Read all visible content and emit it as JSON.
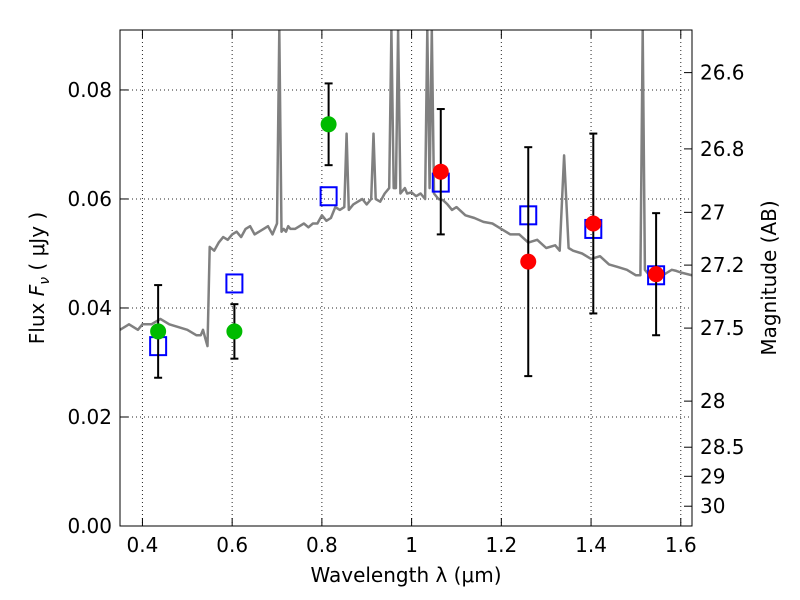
{
  "chart_data": {
    "type": "scatter",
    "xlabel": "Wavelength  λ (μm)",
    "ylabel_left": {
      "prefix": "Flux ",
      "symbol": "F",
      "subscript": "ν",
      "unit": "  ( μJy )"
    },
    "ylabel_right": "Magnitude (AB)",
    "xlim": [
      0.35,
      1.625
    ],
    "ylim": [
      0.0,
      0.091
    ],
    "grid": true,
    "x_ticks": [
      {
        "value": 0.4,
        "label": "0.4"
      },
      {
        "value": 0.6,
        "label": "0.6"
      },
      {
        "value": 0.8,
        "label": "0.8"
      },
      {
        "value": 1.0,
        "label": "1"
      },
      {
        "value": 1.2,
        "label": "1.2"
      },
      {
        "value": 1.4,
        "label": "1.4"
      },
      {
        "value": 1.6,
        "label": "1.6"
      }
    ],
    "y_ticks": [
      {
        "value": 0.0,
        "label": "0.00"
      },
      {
        "value": 0.02,
        "label": "0.02"
      },
      {
        "value": 0.04,
        "label": "0.04"
      },
      {
        "value": 0.06,
        "label": "0.06"
      },
      {
        "value": 0.08,
        "label": "0.08"
      }
    ],
    "magnitude_ticks": [
      {
        "mag": 26.6,
        "label": "26.6"
      },
      {
        "mag": 26.8,
        "label": "26.8"
      },
      {
        "mag": 27.0,
        "label": "27"
      },
      {
        "mag": 27.2,
        "label": "27.2"
      },
      {
        "mag": 27.5,
        "label": "27.5"
      },
      {
        "mag": 28.0,
        "label": "28"
      },
      {
        "mag": 28.5,
        "label": "28.5"
      },
      {
        "mag": 29.0,
        "label": "29"
      },
      {
        "mag": 30.0,
        "label": "30"
      }
    ],
    "series": [
      {
        "kind": "model_spectrum",
        "color": "#808080",
        "x": [
          0.35,
          0.37,
          0.39,
          0.4,
          0.42,
          0.44,
          0.46,
          0.48,
          0.5,
          0.52,
          0.53,
          0.535,
          0.54,
          0.545,
          0.55,
          0.56,
          0.57,
          0.58,
          0.59,
          0.6,
          0.61,
          0.62,
          0.63,
          0.64,
          0.65,
          0.66,
          0.67,
          0.68,
          0.69,
          0.7,
          0.705,
          0.71,
          0.715,
          0.72,
          0.725,
          0.73,
          0.74,
          0.75,
          0.76,
          0.77,
          0.78,
          0.79,
          0.8,
          0.81,
          0.82,
          0.83,
          0.84,
          0.85,
          0.855,
          0.86,
          0.87,
          0.88,
          0.89,
          0.9,
          0.91,
          0.915,
          0.92,
          0.93,
          0.94,
          0.95,
          0.955,
          0.96,
          0.965,
          0.97,
          0.975,
          0.98,
          0.985,
          0.99,
          1.0,
          1.01,
          1.02,
          1.03,
          1.035,
          1.04,
          1.045,
          1.05,
          1.06,
          1.07,
          1.08,
          1.09,
          1.1,
          1.12,
          1.14,
          1.16,
          1.18,
          1.2,
          1.22,
          1.24,
          1.26,
          1.28,
          1.3,
          1.32,
          1.33,
          1.34,
          1.35,
          1.36,
          1.38,
          1.4,
          1.42,
          1.44,
          1.46,
          1.48,
          1.5,
          1.51,
          1.515,
          1.52,
          1.525,
          1.53,
          1.54,
          1.55,
          1.56,
          1.57,
          1.58,
          1.59,
          1.6,
          1.625
        ],
        "y": [
          0.036,
          0.037,
          0.036,
          0.037,
          0.037,
          0.038,
          0.037,
          0.0365,
          0.036,
          0.035,
          0.035,
          0.036,
          0.0345,
          0.033,
          0.0512,
          0.0505,
          0.052,
          0.053,
          0.0525,
          0.0535,
          0.054,
          0.053,
          0.0545,
          0.055,
          0.0535,
          0.054,
          0.0545,
          0.055,
          0.0535,
          0.0555,
          0.091,
          0.054,
          0.0545,
          0.054,
          0.055,
          0.0545,
          0.0545,
          0.055,
          0.0555,
          0.0548,
          0.0555,
          0.0555,
          0.057,
          0.056,
          0.0565,
          0.0585,
          0.058,
          0.0585,
          0.072,
          0.058,
          0.059,
          0.0595,
          0.06,
          0.059,
          0.06,
          0.072,
          0.06,
          0.0595,
          0.061,
          0.062,
          0.091,
          0.062,
          0.062,
          0.091,
          0.061,
          0.0615,
          0.062,
          0.061,
          0.0612,
          0.0605,
          0.061,
          0.06,
          0.091,
          0.062,
          0.091,
          0.061,
          0.06,
          0.0598,
          0.059,
          0.058,
          0.0585,
          0.057,
          0.0565,
          0.0558,
          0.0555,
          0.0545,
          0.0535,
          0.0535,
          0.052,
          0.0525,
          0.051,
          0.0515,
          0.0505,
          0.068,
          0.051,
          0.0505,
          0.05,
          0.049,
          0.0495,
          0.048,
          0.0475,
          0.047,
          0.046,
          0.046,
          0.091,
          0.047,
          0.0465,
          0.046,
          0.0465,
          0.0458,
          0.046,
          0.0465,
          0.047,
          0.0468,
          0.0465,
          0.046
        ]
      },
      {
        "kind": "model_photometry",
        "marker": "open-square",
        "color": "#0000ff",
        "x": [
          0.435,
          0.605,
          0.815,
          1.065,
          1.26,
          1.405,
          1.545
        ],
        "y": [
          0.033,
          0.0445,
          0.0605,
          0.063,
          0.057,
          0.0545,
          0.046
        ]
      },
      {
        "kind": "observed_optical",
        "marker": "filled-circle",
        "color": "#00bb00",
        "x": [
          0.435,
          0.605,
          0.815
        ],
        "y": [
          0.0357,
          0.0357,
          0.0737
        ],
        "yerr": [
          0.0085,
          0.005,
          0.0075
        ]
      },
      {
        "kind": "observed_nir",
        "marker": "filled-circle",
        "color": "#ff0000",
        "x": [
          1.065,
          1.26,
          1.405,
          1.545
        ],
        "y": [
          0.065,
          0.0485,
          0.0555,
          0.0462
        ],
        "yerr": [
          0.0115,
          0.021,
          0.0165,
          0.0112
        ]
      }
    ]
  }
}
